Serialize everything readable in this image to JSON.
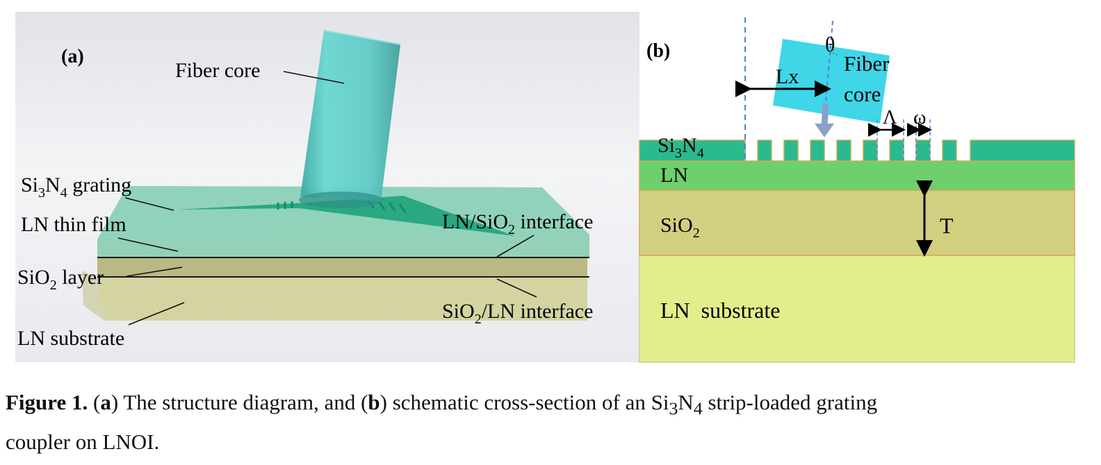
{
  "panel_a": {
    "tag": "(a)",
    "labels": {
      "fiber_core": "Fiber core",
      "grating_main": "Si",
      "grating_sub": "3",
      "grating_main2": "N",
      "grating_sub2": "4",
      "grating_rest": " grating",
      "ln_thin_film": "LN thin film",
      "sio2_layer_main": "SiO",
      "sio2_layer_sub": "2",
      "sio2_layer_rest": " layer",
      "ln_substrate": "LN substrate",
      "if1_a": "LN/SiO",
      "if1_sub": "2",
      "if1_b": " interface",
      "if2_a": "SiO",
      "if2_sub": "2",
      "if2_b": "/LN interface"
    }
  },
  "panel_b": {
    "tag": "(b)",
    "labels": {
      "theta": "θ",
      "fiber": "Fiber",
      "core": "core",
      "lx": "Lx",
      "lambda": "Λ",
      "omega": "ω",
      "si3n4_a": "Si",
      "si3n4_s1": "3",
      "si3n4_b": "N",
      "si3n4_s2": "4",
      "ln": "LN",
      "sio2_a": "SiO",
      "sio2_s": "2",
      "t": "T",
      "ln_substrate": "LN  substrate"
    },
    "colors": {
      "si3n4": "#2bb98f",
      "ln": "#6dd06d",
      "sio2": "#d3cf80",
      "substrate": "#e2ee8c",
      "fiber": "#3fd6e8"
    }
  },
  "caption": {
    "label": "Figure 1.",
    "p1": " (",
    "a": "a",
    "p2": ") The structure diagram, and (",
    "b": "b",
    "p3": ") schematic cross-section of an Si",
    "sub1": "3",
    "p4": "N",
    "sub2": "4",
    "p5": " strip-loaded grating",
    "line2": "coupler on LNOI."
  }
}
